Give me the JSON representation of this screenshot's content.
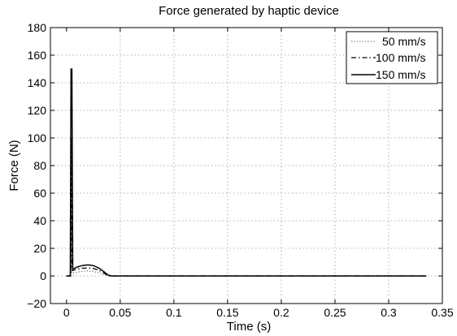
{
  "chart_data": {
    "type": "line",
    "title": "Force generated by haptic device",
    "xlabel": "Time (s)",
    "ylabel": "Force (N)",
    "xlim": [
      -0.015,
      0.35
    ],
    "ylim": [
      -20,
      180
    ],
    "xticks": [
      0,
      0.05,
      0.1,
      0.15,
      0.2,
      0.25,
      0.3,
      0.35
    ],
    "xtick_labels": [
      "0",
      "0.05",
      "0.1",
      "0.15",
      "0.2",
      "0.25",
      "0.3",
      "0.35"
    ],
    "yticks": [
      -20,
      0,
      20,
      40,
      60,
      80,
      100,
      120,
      140,
      160,
      180
    ],
    "ytick_labels": [
      "−20",
      "0",
      "20",
      "40",
      "60",
      "80",
      "100",
      "120",
      "140",
      "160",
      "180"
    ],
    "grid": true,
    "legend_position": "top-right",
    "series": [
      {
        "name": "50 mm/s",
        "style": "dotted",
        "color": "#777777",
        "x": [
          0,
          0.004,
          0.0045,
          0.005,
          0.0055,
          0.006,
          0.01,
          0.015,
          0.02,
          0.025,
          0.03,
          0.035,
          0.04,
          0.045,
          0.335
        ],
        "y": [
          0,
          0,
          40,
          2,
          2,
          2,
          2.8,
          3.4,
          3.6,
          3.2,
          2.4,
          1,
          0,
          0,
          0
        ]
      },
      {
        "name": "100 mm/s",
        "style": "dashdot",
        "color": "#000000",
        "x": [
          0,
          0.004,
          0.0045,
          0.005,
          0.0055,
          0.006,
          0.01,
          0.015,
          0.02,
          0.025,
          0.03,
          0.035,
          0.039,
          0.045,
          0.335
        ],
        "y": [
          0,
          0,
          100,
          4,
          4,
          4,
          5,
          5.6,
          5.8,
          5.4,
          4.2,
          2,
          0,
          0,
          0
        ]
      },
      {
        "name": "150 mm/s",
        "style": "solid",
        "color": "#000000",
        "x": [
          0,
          0.0035,
          0.0042,
          0.005,
          0.0058,
          0.006,
          0.01,
          0.015,
          0.02,
          0.025,
          0.03,
          0.035,
          0.039,
          0.042,
          0.335
        ],
        "y": [
          0,
          0,
          150,
          150,
          5,
          5,
          6.5,
          7.6,
          8,
          7.5,
          5.8,
          3,
          0.5,
          0,
          0
        ]
      }
    ]
  }
}
